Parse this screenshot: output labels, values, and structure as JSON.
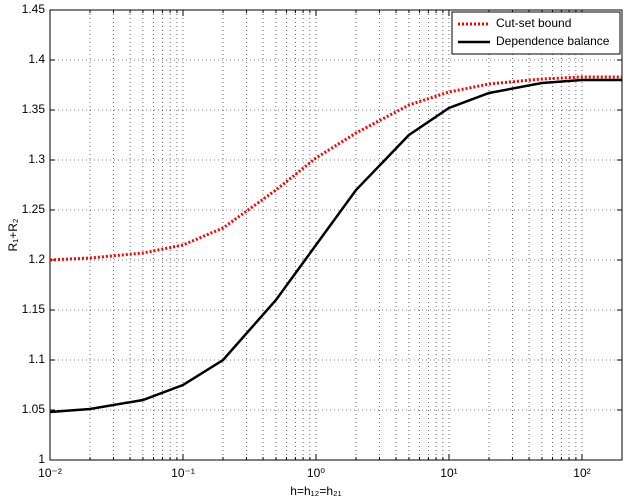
{
  "chart_data": {
    "type": "line",
    "x_label": "h=h₁₂=h₂₁",
    "y_label": "R₁+R₂",
    "x_scale": "log",
    "x": [
      0.01,
      0.02,
      0.05,
      0.1,
      0.2,
      0.5,
      1,
      2,
      5,
      10,
      20,
      50,
      100,
      200
    ],
    "series": [
      {
        "name": "Cut-set bound",
        "color": "#ff0000",
        "style": "dotted",
        "values": [
          1.2,
          1.202,
          1.207,
          1.215,
          1.232,
          1.27,
          1.302,
          1.327,
          1.355,
          1.368,
          1.376,
          1.381,
          1.383,
          1.383
        ]
      },
      {
        "name": "Dependence balance",
        "color": "#000000",
        "style": "solid",
        "values": [
          1.048,
          1.051,
          1.06,
          1.075,
          1.1,
          1.16,
          1.215,
          1.27,
          1.325,
          1.352,
          1.367,
          1.377,
          1.38,
          1.38
        ]
      }
    ],
    "xlim": [
      0.01,
      200
    ],
    "ylim": [
      1,
      1.45
    ],
    "xticks": [
      {
        "value": 0.01,
        "label": "10⁻²"
      },
      {
        "value": 0.1,
        "label": "10⁻¹"
      },
      {
        "value": 1,
        "label": "10⁰"
      },
      {
        "value": 10,
        "label": "10¹"
      },
      {
        "value": 100,
        "label": "10²"
      }
    ],
    "xminorticks": [
      0.02,
      0.03,
      0.04,
      0.05,
      0.06,
      0.07,
      0.08,
      0.09,
      0.2,
      0.3,
      0.4,
      0.5,
      0.6,
      0.7,
      0.8,
      0.9,
      2,
      3,
      4,
      5,
      6,
      7,
      8,
      9,
      20,
      30,
      40,
      50,
      60,
      70,
      80,
      90,
      200
    ],
    "yticks": [
      1,
      1.05,
      1.1,
      1.15,
      1.2,
      1.25,
      1.3,
      1.35,
      1.4,
      1.45
    ],
    "grid": true,
    "legend": "top-right"
  }
}
